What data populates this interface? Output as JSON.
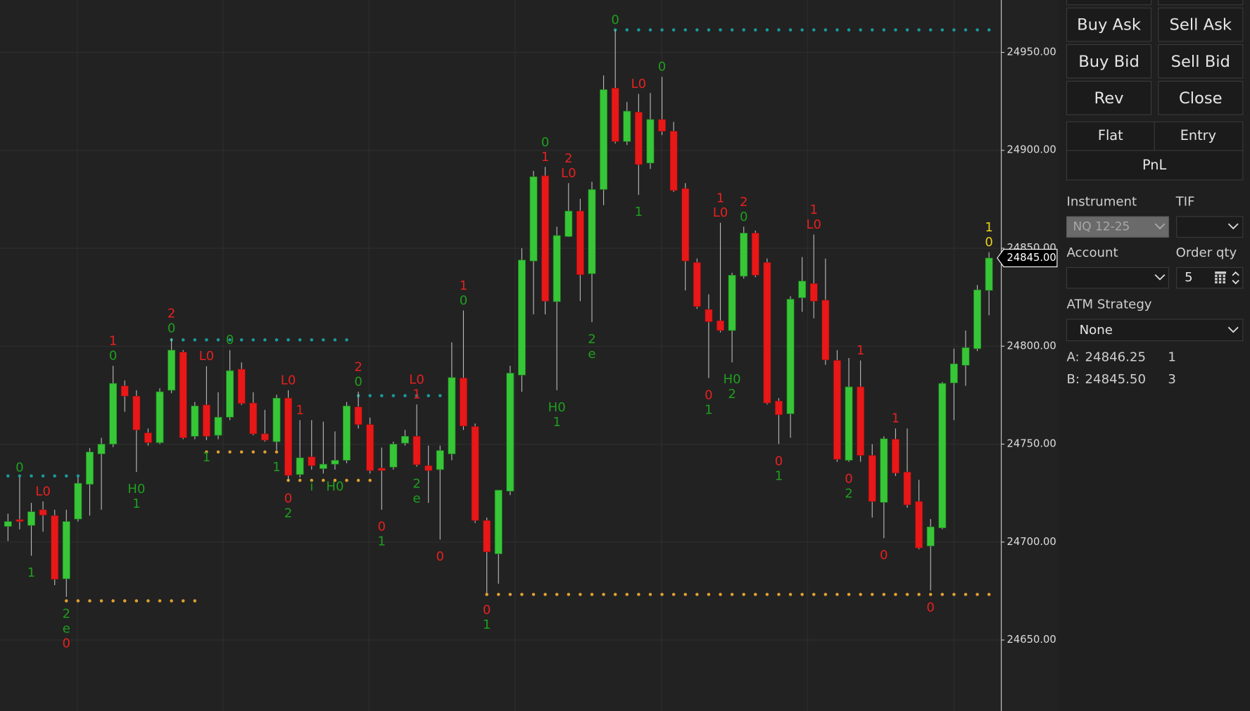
{
  "chart_data": {
    "type": "candlestick",
    "open": [
      24708,
      24711.5,
      24708.5,
      24716.5,
      24713.5,
      24681.25,
      24711.75,
      24729.5,
      24745,
      24750,
      24779.75,
      24774.5,
      24755.75,
      24750.75,
      24777.5,
      24797,
      24754,
      24770,
      24754.5,
      24763.75,
      24788.25,
      24771,
      24755.25,
      24751.25,
      24773.5,
      24734.5,
      24743.5,
      24737.5,
      24739.75,
      24741.75,
      24769,
      24760,
      24737.75,
      24738.25,
      24750.5,
      24754,
      24739,
      24737,
      24745,
      24783.75,
      24759,
      24711,
      24694,
      24726,
      24785.25,
      24843.5,
      24887,
      24822.75,
      24856,
      24869,
      24837,
      24880,
      24931.75,
      24904.5,
      24919.5,
      24893.5,
      24915.75,
      24909.75,
      24880.5,
      24842.75,
      24818.75,
      24813,
      24808,
      24835.75,
      24857.75,
      24842.75,
      24772,
      24765.5,
      24824.75,
      24832,
      24823.5,
      24792.75,
      24741.75,
      24779.25,
      24744.25,
      24720.25,
      24752.5,
      24735.75,
      24720.75,
      24698,
      24707.25,
      24781.25,
      24790.25,
      24798.75,
      24828.5
    ],
    "high": [
      24714.5,
      24733,
      24720,
      24720.75,
      24716.5,
      24716.5,
      24733,
      24748,
      24753.25,
      24790,
      24782.5,
      24777.5,
      24758,
      24778.5,
      24804,
      24798,
      24771.5,
      24789.75,
      24776.5,
      24798,
      24791.75,
      24776.5,
      24767.5,
      24775.25,
      24777.5,
      24762.25,
      24762.25,
      24761.5,
      24756.5,
      24771.5,
      24776.75,
      24763.5,
      24748.25,
      24751.25,
      24757.25,
      24770.25,
      24749.25,
      24749.25,
      24802,
      24818.25,
      24760.5,
      24712.5,
      24726.5,
      24790,
      24850,
      24889.5,
      24891.5,
      24861,
      24883.25,
      24875.25,
      24884,
      24938.25,
      24961.5,
      24924.75,
      24928.75,
      24929.25,
      24937.5,
      24914.5,
      24883.25,
      24844.75,
      24826.5,
      24863,
      24837.5,
      24861,
      24859,
      24844.75,
      24773.5,
      24825.5,
      24845.5,
      24857,
      24844.75,
      24798,
      24794,
      24792.75,
      24750,
      24754,
      24758,
      24758,
      24731.75,
      24711.75,
      24781.75,
      24798.75,
      24808,
      24831.25,
      24848
    ],
    "low": [
      24700.5,
      24706.5,
      24693,
      24705.25,
      24678,
      24672,
      24710.5,
      24713.5,
      24716.5,
      24748.5,
      24766.5,
      24735.75,
      24749.25,
      24750,
      24776,
      24752.5,
      24752.5,
      24752,
      24752.5,
      24762.25,
      24770,
      24754.5,
      24751.25,
      24747,
      24731,
      24733,
      24737,
      24735,
      24737,
      24740.25,
      24758,
      24735,
      24716.5,
      24737,
      24749.25,
      24738.5,
      24720,
      24701.25,
      24741.75,
      24757.25,
      24709.75,
      24674,
      24678.75,
      24724,
      24776.75,
      24816.25,
      24816.25,
      24777.5,
      24855.75,
      24823,
      24812.25,
      24872,
      24903.5,
      24902.75,
      24877.25,
      24890.5,
      24907.75,
      24878.75,
      24828.5,
      24819,
      24783.75,
      24807,
      24791.75,
      24834.5,
      24835.25,
      24770.25,
      24750,
      24753.25,
      24817.5,
      24814.25,
      24790.5,
      24741,
      24741,
      24741,
      24712.5,
      24702,
      24733.75,
      24717.5,
      24696.25,
      24675.25,
      24706.5,
      24762.25,
      24779.75,
      24797.5,
      24815.75
    ],
    "close": [
      24710.5,
      24710.5,
      24715.5,
      24713.75,
      24681,
      24710.5,
      24730,
      24746,
      24750,
      24781,
      24774.5,
      24757.25,
      24750.75,
      24776.75,
      24798,
      24753.25,
      24769.5,
      24754,
      24763.75,
      24787.5,
      24770.75,
      24755.25,
      24752,
      24773.5,
      24734,
      24743,
      24739,
      24739.75,
      24741.75,
      24769.5,
      24760,
      24736.5,
      24736.5,
      24750,
      24754,
      24739.5,
      24736.5,
      24746.75,
      24784,
      24759.25,
      24711,
      24695,
      24726.5,
      24786.25,
      24844,
      24886.5,
      24823,
      24856.5,
      24869,
      24836.5,
      24880,
      24931,
      24904.5,
      24920,
      24892.75,
      24915.75,
      24909.75,
      24879.5,
      24843.5,
      24820.25,
      24812.5,
      24808,
      24836.25,
      24857.75,
      24836.25,
      24771,
      24765,
      24824,
      24833.25,
      24823,
      24793,
      24742.25,
      24779.25,
      24744.25,
      24720.75,
      24752.75,
      24735.25,
      24719,
      24697,
      24707.75,
      24781,
      24791,
      24799.25,
      24828.75,
      24845
    ],
    "up_color": "#37c637",
    "down_color": "#e81818",
    "ylim": [
      24613.75,
      24976.75
    ],
    "yticks": [
      {
        "value": 24650,
        "label": "24650.00"
      },
      {
        "value": 24700,
        "label": "24700.00"
      },
      {
        "value": 24750,
        "label": "24750.00"
      },
      {
        "value": 24800,
        "label": "24800.00"
      },
      {
        "value": 24850,
        "label": "24850.00"
      },
      {
        "value": 24900,
        "label": "24900.00"
      },
      {
        "value": 24950,
        "label": "24950.00"
      }
    ],
    "grid": true,
    "last_price": {
      "value": 24845,
      "label": "24845.00"
    },
    "levels": [
      {
        "price": 24961.5,
        "start": 52,
        "end": 84,
        "color": "#1a9a9a"
      },
      {
        "price": 24803.25,
        "start": 14,
        "end": 29,
        "color": "#1a9a9a"
      },
      {
        "price": 24774.75,
        "start": 30,
        "end": 37,
        "color": "#1a9a9a"
      },
      {
        "price": 24733.75,
        "start": 0,
        "end": 6,
        "color": "#1a9a9a"
      },
      {
        "price": 24670,
        "start": 5,
        "end": 16,
        "color": "#e0a030"
      },
      {
        "price": 24746,
        "start": 17,
        "end": 23,
        "color": "#e0a030"
      },
      {
        "price": 24731.5,
        "start": 24,
        "end": 31,
        "color": "#e0a030"
      },
      {
        "price": 24673.25,
        "start": 41,
        "end": 84,
        "color": "#e0a030"
      }
    ],
    "annotations": [
      {
        "candle": 1,
        "side": "above",
        "lines": [
          "0"
        ],
        "colors": [
          "#1e9e1e"
        ]
      },
      {
        "candle": 2,
        "side": "below",
        "lines": [
          "1"
        ],
        "colors": [
          "#1e9e1e"
        ]
      },
      {
        "candle": 3,
        "side": "above",
        "lines": [
          "L0"
        ],
        "colors": [
          "#e62020"
        ]
      },
      {
        "candle": 5,
        "side": "below",
        "lines": [
          "2",
          "e",
          "0"
        ],
        "colors": [
          "#1e9e1e",
          "#1e9e1e",
          "#e62020"
        ]
      },
      {
        "candle": 9,
        "side": "above",
        "lines": [
          "1",
          "0"
        ],
        "colors": [
          "#e62020",
          "#1e9e1e"
        ]
      },
      {
        "candle": 11,
        "side": "below",
        "lines": [
          "H0",
          "1"
        ],
        "colors": [
          "#1e9e1e",
          "#1e9e1e"
        ]
      },
      {
        "candle": 14,
        "side": "above",
        "lines": [
          "2",
          "0"
        ],
        "colors": [
          "#e62020",
          "#1e9e1e"
        ]
      },
      {
        "candle": 17,
        "side": "above",
        "lines": [
          "L0"
        ],
        "colors": [
          "#e62020"
        ]
      },
      {
        "candle": 17,
        "side": "below",
        "lines": [
          "1"
        ],
        "colors": [
          "#1e9e1e"
        ]
      },
      {
        "candle": 19,
        "side": "above",
        "lines": [
          "0"
        ],
        "colors": [
          "#1e9e1e"
        ]
      },
      {
        "candle": 23,
        "side": "below",
        "lines": [
          "1"
        ],
        "colors": [
          "#1e9e1e"
        ]
      },
      {
        "candle": 24,
        "side": "above",
        "lines": [
          "L0"
        ],
        "colors": [
          "#e62020"
        ]
      },
      {
        "candle": 24,
        "side": "below",
        "lines": [
          "0",
          "2"
        ],
        "colors": [
          "#e62020",
          "#1e9e1e"
        ]
      },
      {
        "candle": 25,
        "side": "above",
        "lines": [
          "1"
        ],
        "colors": [
          "#e62020"
        ]
      },
      {
        "candle": 26,
        "side": "below",
        "lines": [
          "i"
        ],
        "colors": [
          "#1e9e1e"
        ]
      },
      {
        "candle": 28,
        "side": "below",
        "lines": [
          "H0"
        ],
        "colors": [
          "#1e9e1e"
        ]
      },
      {
        "candle": 30,
        "side": "above",
        "lines": [
          "2",
          "0"
        ],
        "colors": [
          "#e62020",
          "#1e9e1e"
        ]
      },
      {
        "candle": 32,
        "side": "below",
        "lines": [
          "0",
          "1"
        ],
        "colors": [
          "#e62020",
          "#1e9e1e"
        ]
      },
      {
        "candle": 35,
        "side": "above",
        "lines": [
          "L0",
          "1"
        ],
        "colors": [
          "#e62020",
          "#e62020"
        ]
      },
      {
        "candle": 35,
        "side": "below",
        "lines": [
          "2",
          "e"
        ],
        "colors": [
          "#1e9e1e",
          "#1e9e1e"
        ]
      },
      {
        "candle": 37,
        "side": "below",
        "lines": [
          "0"
        ],
        "colors": [
          "#e62020"
        ]
      },
      {
        "candle": 39,
        "side": "above",
        "lines": [
          "1",
          "0"
        ],
        "colors": [
          "#e62020",
          "#1e9e1e"
        ]
      },
      {
        "candle": 41,
        "side": "below",
        "lines": [
          "0",
          "1"
        ],
        "colors": [
          "#e62020",
          "#1e9e1e"
        ]
      },
      {
        "candle": 46,
        "side": "above",
        "lines": [
          "0",
          "1"
        ],
        "colors": [
          "#1e9e1e",
          "#e62020"
        ]
      },
      {
        "candle": 47,
        "side": "below",
        "lines": [
          "H0",
          "1"
        ],
        "colors": [
          "#1e9e1e",
          "#1e9e1e"
        ]
      },
      {
        "candle": 48,
        "side": "above",
        "lines": [
          "2",
          "L0"
        ],
        "colors": [
          "#e62020",
          "#e62020"
        ]
      },
      {
        "candle": 50,
        "side": "below",
        "lines": [
          "2",
          "e"
        ],
        "colors": [
          "#1e9e1e",
          "#1e9e1e"
        ]
      },
      {
        "candle": 52,
        "side": "above",
        "lines": [
          "0"
        ],
        "colors": [
          "#1e9e1e"
        ]
      },
      {
        "candle": 54,
        "side": "above",
        "lines": [
          "L0"
        ],
        "colors": [
          "#e62020"
        ]
      },
      {
        "candle": 54,
        "side": "below",
        "lines": [
          "1"
        ],
        "colors": [
          "#1e9e1e"
        ]
      },
      {
        "candle": 56,
        "side": "above",
        "lines": [
          "0"
        ],
        "colors": [
          "#1e9e1e"
        ]
      },
      {
        "candle": 60,
        "side": "below",
        "lines": [
          "0",
          "1"
        ],
        "colors": [
          "#e62020",
          "#1e9e1e"
        ]
      },
      {
        "candle": 61,
        "side": "above",
        "lines": [
          "1",
          "L0"
        ],
        "colors": [
          "#e62020",
          "#e62020"
        ]
      },
      {
        "candle": 62,
        "side": "below",
        "lines": [
          "H0",
          "2"
        ],
        "colors": [
          "#1e9e1e",
          "#1e9e1e"
        ]
      },
      {
        "candle": 63,
        "side": "above",
        "lines": [
          "2",
          "0"
        ],
        "colors": [
          "#e62020",
          "#1e9e1e"
        ]
      },
      {
        "candle": 66,
        "side": "below",
        "lines": [
          "0",
          "1"
        ],
        "colors": [
          "#e62020",
          "#1e9e1e"
        ]
      },
      {
        "candle": 69,
        "side": "above",
        "lines": [
          "1",
          "L0"
        ],
        "colors": [
          "#e62020",
          "#e62020"
        ]
      },
      {
        "candle": 72,
        "side": "below",
        "lines": [
          "0",
          "2"
        ],
        "colors": [
          "#e62020",
          "#1e9e1e"
        ]
      },
      {
        "candle": 73,
        "side": "above",
        "lines": [
          "1"
        ],
        "colors": [
          "#e62020"
        ]
      },
      {
        "candle": 75,
        "side": "below",
        "lines": [
          "0"
        ],
        "colors": [
          "#e62020"
        ]
      },
      {
        "candle": 76,
        "side": "above",
        "lines": [
          "1"
        ],
        "colors": [
          "#e62020"
        ]
      },
      {
        "candle": 79,
        "side": "below",
        "lines": [
          "0"
        ],
        "colors": [
          "#e62020"
        ]
      },
      {
        "candle": 84,
        "side": "above",
        "lines": [
          "1",
          "0"
        ],
        "colors": [
          "#e8d020",
          "#e8d020"
        ]
      }
    ]
  },
  "panel": {
    "buttons": [
      [
        "Buy Ask",
        "Sell Ask"
      ],
      [
        "Buy Bid",
        "Sell Bid"
      ],
      [
        "Rev",
        "Close"
      ]
    ],
    "tabs": [
      "Flat",
      "Entry"
    ],
    "pnl": "PnL",
    "instrument_label": "Instrument",
    "instrument": "NQ 12-25",
    "tif_label": "TIF",
    "account_label": "Account",
    "order_qty_label": "Order qty",
    "order_qty": "5",
    "atm_label": "ATM Strategy",
    "atm": "None",
    "ask": {
      "label": "A:",
      "price": "24846.25",
      "size": "1"
    },
    "bid": {
      "label": "B:",
      "price": "24845.50",
      "size": "3"
    }
  }
}
